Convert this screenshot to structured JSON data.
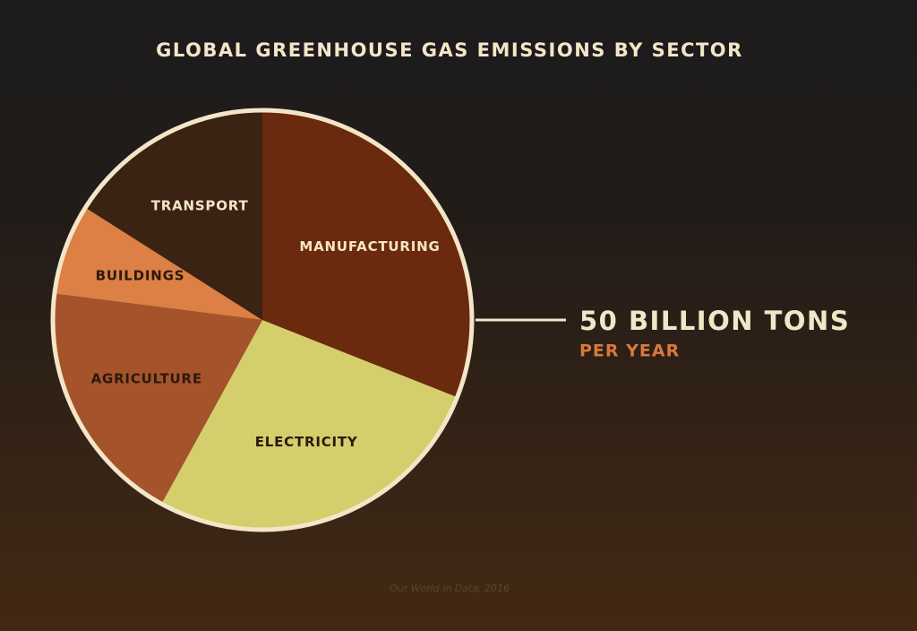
{
  "chart_data": {
    "type": "pie",
    "title": "GLOBAL GREENHOUSE GAS EMISSIONS BY SECTOR",
    "categories": [
      "MANUFACTURING",
      "ELECTRICITY",
      "AGRICULTURE",
      "BUILDINGS",
      "TRANSPORT"
    ],
    "values": [
      31,
      27,
      19,
      7,
      16
    ],
    "colors": [
      "#6b290d",
      "#d4ce6c",
      "#a5532b",
      "#dc8045",
      "#3a2313"
    ],
    "label_colors": [
      "#f3e6c8",
      "#2a1a0c",
      "#2a1a0c",
      "#2a1a0c",
      "#f3e6c8"
    ],
    "total_label": "50 BILLION TONS",
    "total_sublabel": "PER YEAR",
    "source": "Our World in Data, 2016"
  }
}
